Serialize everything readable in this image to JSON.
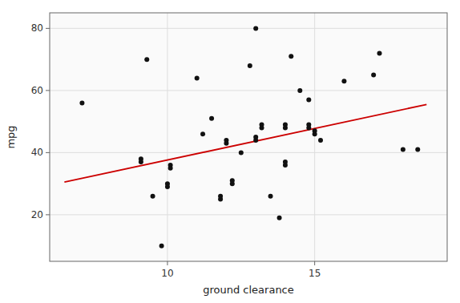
{
  "chart_data": {
    "type": "scatter",
    "xlabel": "ground clearance",
    "ylabel": "mpg",
    "xlim": [
      6.0,
      19.5
    ],
    "ylim": [
      5,
      85
    ],
    "xticks": [
      10,
      15
    ],
    "yticks": [
      20,
      40,
      60,
      80
    ],
    "grid": true,
    "series": [
      {
        "type": "scatter",
        "color": "#111111",
        "x": [
          7.1,
          9.1,
          9.1,
          9.3,
          9.5,
          9.8,
          10.0,
          10.0,
          10.1,
          10.1,
          11.0,
          11.2,
          11.5,
          11.8,
          11.8,
          12.0,
          12.0,
          12.2,
          12.2,
          12.5,
          12.8,
          13.0,
          13.0,
          13.0,
          13.2,
          13.2,
          13.5,
          13.8,
          14.0,
          14.0,
          14.0,
          14.0,
          14.2,
          14.5,
          14.8,
          14.8,
          14.8,
          15.0,
          15.0,
          15.2,
          16.0,
          17.0,
          17.2,
          18.0,
          18.5
        ],
        "values": [
          56,
          38,
          37,
          70,
          26,
          10,
          30,
          29,
          36,
          35,
          64,
          46,
          51,
          25,
          26,
          44,
          43,
          30,
          31,
          40,
          68,
          80,
          45,
          44,
          49,
          48,
          26,
          19,
          49,
          48,
          37,
          36,
          71,
          60,
          57,
          49,
          48,
          47,
          46,
          44,
          63,
          65,
          72,
          41,
          41
        ]
      },
      {
        "type": "line",
        "color": "#CC0000",
        "x": [
          6.5,
          18.8
        ],
        "values": [
          30.5,
          55.5
        ]
      }
    ]
  }
}
